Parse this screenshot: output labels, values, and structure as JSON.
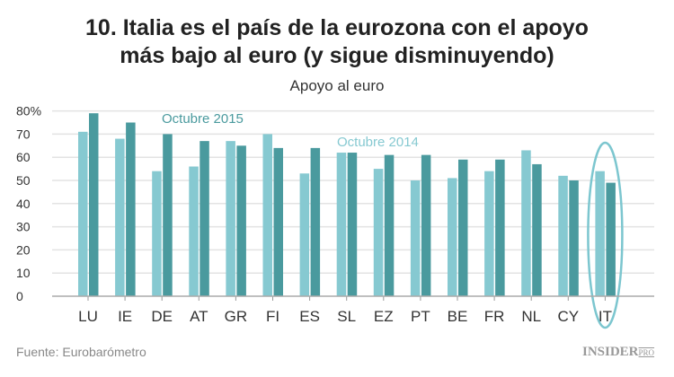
{
  "chart_data": {
    "type": "bar",
    "title_line1": "10. Italia es el país de la eurozona con el apoyo",
    "title_line2": "más bajo al euro (y sigue disminuyendo)",
    "subtitle": "Apoyo al euro",
    "categories": [
      "LU",
      "IE",
      "DE",
      "AT",
      "GR",
      "FI",
      "ES",
      "SL",
      "EZ",
      "PT",
      "BE",
      "FR",
      "NL",
      "CY",
      "IT"
    ],
    "series": [
      {
        "name": "Octubre 2014",
        "color": "#86c9d1",
        "values": [
          71,
          68,
          54,
          56,
          67,
          70,
          53,
          62,
          55,
          50,
          51,
          54,
          63,
          52,
          54
        ]
      },
      {
        "name": "Octubre 2015",
        "color": "#4a9a9e",
        "values": [
          79,
          75,
          70,
          67,
          65,
          64,
          64,
          62,
          61,
          61,
          59,
          59,
          57,
          50,
          49
        ]
      }
    ],
    "ylim": [
      0,
      80
    ],
    "yticks": [
      "0",
      "10",
      "20",
      "30",
      "40",
      "50",
      "60",
      "70",
      "80%"
    ],
    "grid": true,
    "highlight": "IT",
    "highlight_color": "#7cc6cf",
    "source": "Fuente: Eurobarómetro",
    "logo": "INSIDER",
    "logo_suffix": "PRO"
  }
}
